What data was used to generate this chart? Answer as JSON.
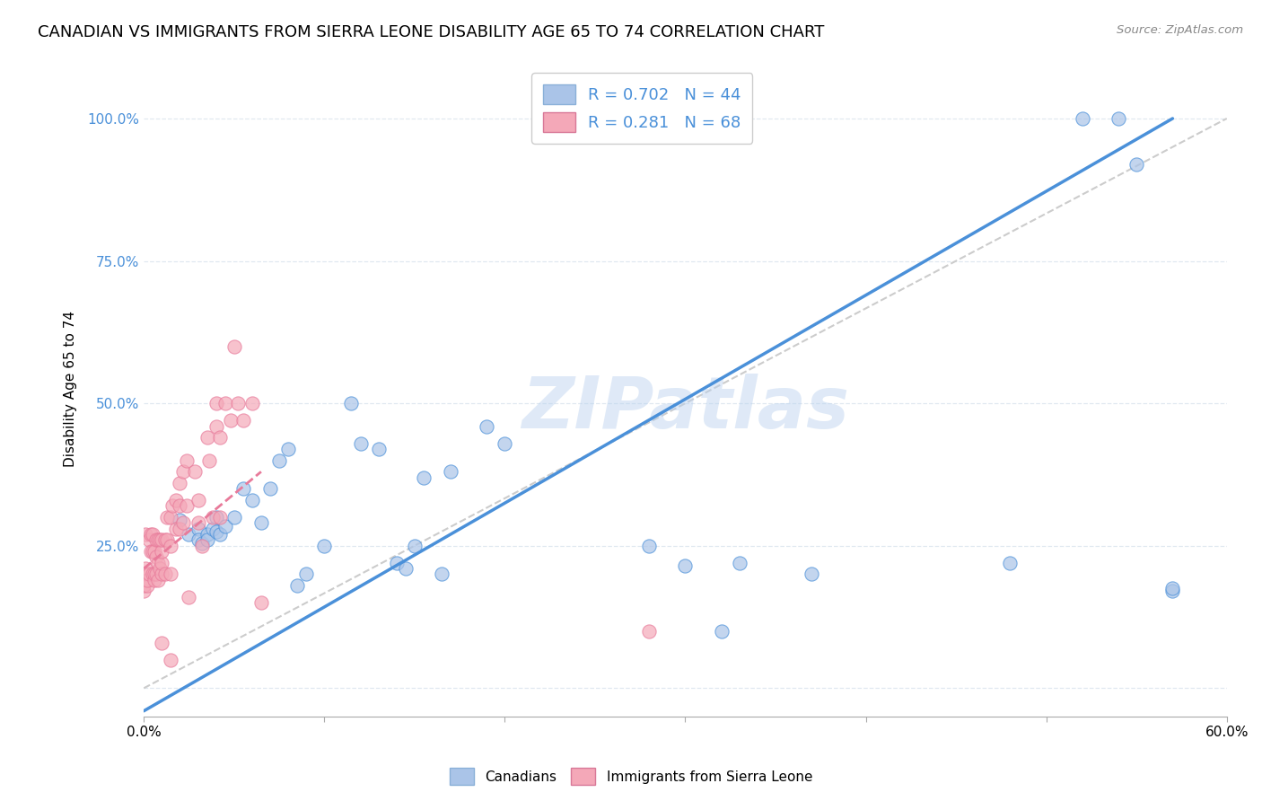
{
  "title": "CANADIAN VS IMMIGRANTS FROM SIERRA LEONE DISABILITY AGE 65 TO 74 CORRELATION CHART",
  "source": "Source: ZipAtlas.com",
  "xlabel": "",
  "ylabel": "Disability Age 65 to 74",
  "xlim": [
    0.0,
    0.6
  ],
  "ylim": [
    -0.05,
    1.1
  ],
  "xticks": [
    0.0,
    0.1,
    0.2,
    0.3,
    0.4,
    0.5,
    0.6
  ],
  "xticklabels": [
    "0.0%",
    "",
    "",
    "",
    "",
    "",
    "60.0%"
  ],
  "yticks": [
    0.0,
    0.25,
    0.5,
    0.75,
    1.0
  ],
  "yticklabels": [
    "",
    "25.0%",
    "50.0%",
    "75.0%",
    "100.0%"
  ],
  "background_color": "#ffffff",
  "grid_color": "#e0e8f0",
  "watermark": "ZIPatlas",
  "legend_R_canadian": "R = 0.702",
  "legend_N_canadian": "N = 44",
  "legend_R_sierraleone": "R = 0.281",
  "legend_N_sierraleone": "N = 68",
  "canadian_color": "#aac4e8",
  "sierraleone_color": "#f4a8b8",
  "canadian_line_color": "#4a90d9",
  "sierraleone_line_color": "#e87a9a",
  "ref_line_color": "#cccccc",
  "title_fontsize": 13,
  "axis_label_fontsize": 11,
  "tick_label_fontsize": 11,
  "canadian_x": [
    0.02,
    0.025,
    0.03,
    0.03,
    0.032,
    0.035,
    0.035,
    0.038,
    0.04,
    0.04,
    0.042,
    0.045,
    0.05,
    0.055,
    0.06,
    0.065,
    0.07,
    0.075,
    0.08,
    0.085,
    0.09,
    0.1,
    0.115,
    0.12,
    0.13,
    0.14,
    0.145,
    0.15,
    0.155,
    0.165,
    0.17,
    0.19,
    0.2,
    0.28,
    0.3,
    0.32,
    0.33,
    0.37,
    0.48,
    0.52,
    0.54,
    0.55,
    0.57,
    0.57
  ],
  "canadian_y": [
    0.295,
    0.27,
    0.28,
    0.26,
    0.255,
    0.27,
    0.26,
    0.28,
    0.3,
    0.275,
    0.27,
    0.285,
    0.3,
    0.35,
    0.33,
    0.29,
    0.35,
    0.4,
    0.42,
    0.18,
    0.2,
    0.25,
    0.5,
    0.43,
    0.42,
    0.22,
    0.21,
    0.25,
    0.37,
    0.2,
    0.38,
    0.46,
    0.43,
    0.25,
    0.215,
    0.1,
    0.22,
    0.2,
    0.22,
    1.0,
    1.0,
    0.92,
    0.17,
    0.175
  ],
  "sierraleone_x": [
    0.0,
    0.0,
    0.0,
    0.001,
    0.001,
    0.002,
    0.002,
    0.003,
    0.003,
    0.004,
    0.004,
    0.005,
    0.005,
    0.005,
    0.006,
    0.006,
    0.006,
    0.007,
    0.007,
    0.007,
    0.008,
    0.008,
    0.008,
    0.009,
    0.009,
    0.01,
    0.01,
    0.01,
    0.01,
    0.012,
    0.012,
    0.013,
    0.013,
    0.015,
    0.015,
    0.015,
    0.016,
    0.018,
    0.018,
    0.02,
    0.02,
    0.02,
    0.022,
    0.022,
    0.024,
    0.024,
    0.025,
    0.028,
    0.03,
    0.03,
    0.032,
    0.035,
    0.036,
    0.038,
    0.04,
    0.04,
    0.042,
    0.042,
    0.045,
    0.048,
    0.05,
    0.052,
    0.055,
    0.06,
    0.065,
    0.01,
    0.015,
    0.28
  ],
  "sierraleone_y": [
    0.17,
    0.18,
    0.2,
    0.21,
    0.27,
    0.18,
    0.19,
    0.2,
    0.26,
    0.24,
    0.27,
    0.2,
    0.24,
    0.27,
    0.19,
    0.2,
    0.24,
    0.2,
    0.23,
    0.26,
    0.19,
    0.22,
    0.26,
    0.21,
    0.26,
    0.2,
    0.22,
    0.24,
    0.26,
    0.2,
    0.26,
    0.26,
    0.3,
    0.2,
    0.25,
    0.3,
    0.32,
    0.28,
    0.33,
    0.28,
    0.32,
    0.36,
    0.29,
    0.38,
    0.4,
    0.32,
    0.16,
    0.38,
    0.29,
    0.33,
    0.25,
    0.44,
    0.4,
    0.3,
    0.46,
    0.5,
    0.3,
    0.44,
    0.5,
    0.47,
    0.6,
    0.5,
    0.47,
    0.5,
    0.15,
    0.08,
    0.05,
    0.1
  ],
  "canadian_regline_x": [
    0.0,
    0.57
  ],
  "canadian_regline_y": [
    -0.04,
    1.0
  ],
  "sierraleone_regline_x": [
    0.0,
    0.065
  ],
  "sierraleone_regline_y": [
    0.21,
    0.38
  ]
}
